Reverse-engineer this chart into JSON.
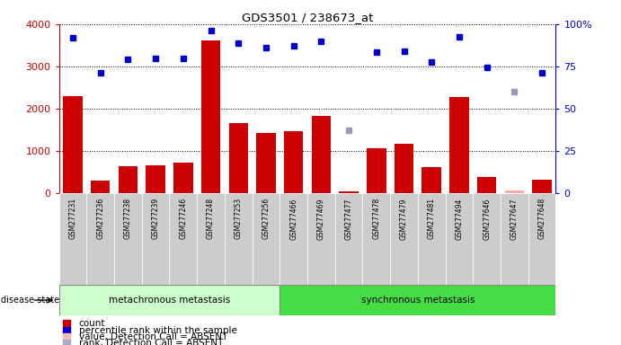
{
  "title": "GDS3501 / 238673_at",
  "samples": [
    "GSM277231",
    "GSM277236",
    "GSM277238",
    "GSM277239",
    "GSM277246",
    "GSM277248",
    "GSM277253",
    "GSM277256",
    "GSM277466",
    "GSM277469",
    "GSM277477",
    "GSM277478",
    "GSM277479",
    "GSM277481",
    "GSM277494",
    "GSM277646",
    "GSM277647",
    "GSM277648"
  ],
  "bar_values": [
    2300,
    290,
    640,
    650,
    730,
    3620,
    1650,
    1430,
    1460,
    1820,
    50,
    1060,
    1160,
    610,
    2280,
    380,
    70,
    310
  ],
  "bar_absent": [
    false,
    false,
    false,
    false,
    false,
    false,
    false,
    false,
    false,
    false,
    false,
    false,
    false,
    false,
    false,
    false,
    true,
    false
  ],
  "bar_color": "#cc0000",
  "bar_absent_color": "#ffaaaa",
  "dot_values": [
    92,
    71.5,
    79,
    80,
    79.5,
    96.25,
    88.75,
    86,
    87,
    89.75,
    37.25,
    83.25,
    83.75,
    77.75,
    92.75,
    74.25,
    60,
    71
  ],
  "dot_absent": [
    false,
    false,
    false,
    false,
    false,
    false,
    false,
    false,
    false,
    false,
    true,
    false,
    false,
    false,
    false,
    false,
    true,
    false
  ],
  "dot_color": "#0000cc",
  "dot_absent_color": "#9999bb",
  "ylim_left": [
    0,
    4000
  ],
  "ylim_right": [
    0,
    100
  ],
  "yticks_left": [
    0,
    1000,
    2000,
    3000,
    4000
  ],
  "ytick_labels_left": [
    "0",
    "1000",
    "2000",
    "3000",
    "4000"
  ],
  "yticks_right": [
    0,
    25,
    50,
    75,
    100
  ],
  "ytick_labels_right": [
    "0",
    "25",
    "50",
    "75",
    "100%"
  ],
  "group1_label": "metachronous metastasis",
  "group1_count": 8,
  "group2_label": "synchronous metastasis",
  "group2_count": 10,
  "disease_state_label": "disease state",
  "legend_items": [
    {
      "label": "count",
      "color": "#cc0000"
    },
    {
      "label": "percentile rank within the sample",
      "color": "#0000cc"
    },
    {
      "label": "value, Detection Call = ABSENT",
      "color": "#ffbbbb"
    },
    {
      "label": "rank, Detection Call = ABSENT",
      "color": "#aaaacc"
    }
  ],
  "group1_bg": "#ccffcc",
  "group2_bg": "#44dd44",
  "left_axis_color": "#cc0000",
  "right_axis_color": "#0000cc",
  "sample_label_bg": "#cccccc"
}
